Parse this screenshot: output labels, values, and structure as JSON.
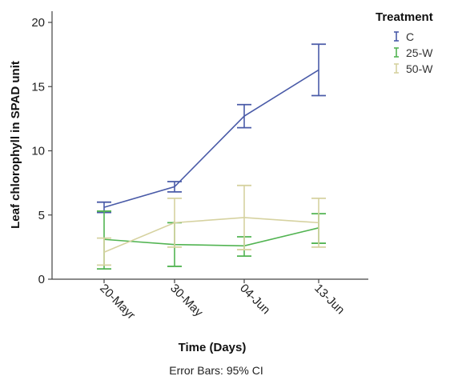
{
  "chart_data": {
    "type": "line",
    "xlabel": "Time (Days)",
    "ylabel": "Leaf chlorophyll in SPAD unit",
    "footnote": "Error Bars: 95% CI",
    "legend_title": "Treatment",
    "legend_position": "top-right",
    "categories": [
      "20-Mayr",
      "30-May",
      "04-Jun",
      "13-Jun"
    ],
    "ylim": [
      0,
      20
    ],
    "yticks": [
      "0",
      "5",
      "10",
      "15",
      "20"
    ],
    "grid": false,
    "series": [
      {
        "name": "C",
        "color": "#4a5ba8",
        "values": [
          5.6,
          7.2,
          12.7,
          16.3
        ],
        "ci_low": [
          5.2,
          6.8,
          11.8,
          14.3
        ],
        "ci_high": [
          6.0,
          7.6,
          13.6,
          18.3
        ]
      },
      {
        "name": "25-W",
        "color": "#52b452",
        "values": [
          3.1,
          2.7,
          2.6,
          4.0
        ],
        "ci_low": [
          0.8,
          1.0,
          1.8,
          2.8
        ],
        "ci_high": [
          5.3,
          4.4,
          3.3,
          5.1
        ]
      },
      {
        "name": "50-W",
        "color": "#d6d2a0",
        "values": [
          2.1,
          4.4,
          4.8,
          4.4
        ],
        "ci_low": [
          1.1,
          2.5,
          2.3,
          2.5
        ],
        "ci_high": [
          3.2,
          6.3,
          7.3,
          6.3
        ]
      }
    ]
  }
}
